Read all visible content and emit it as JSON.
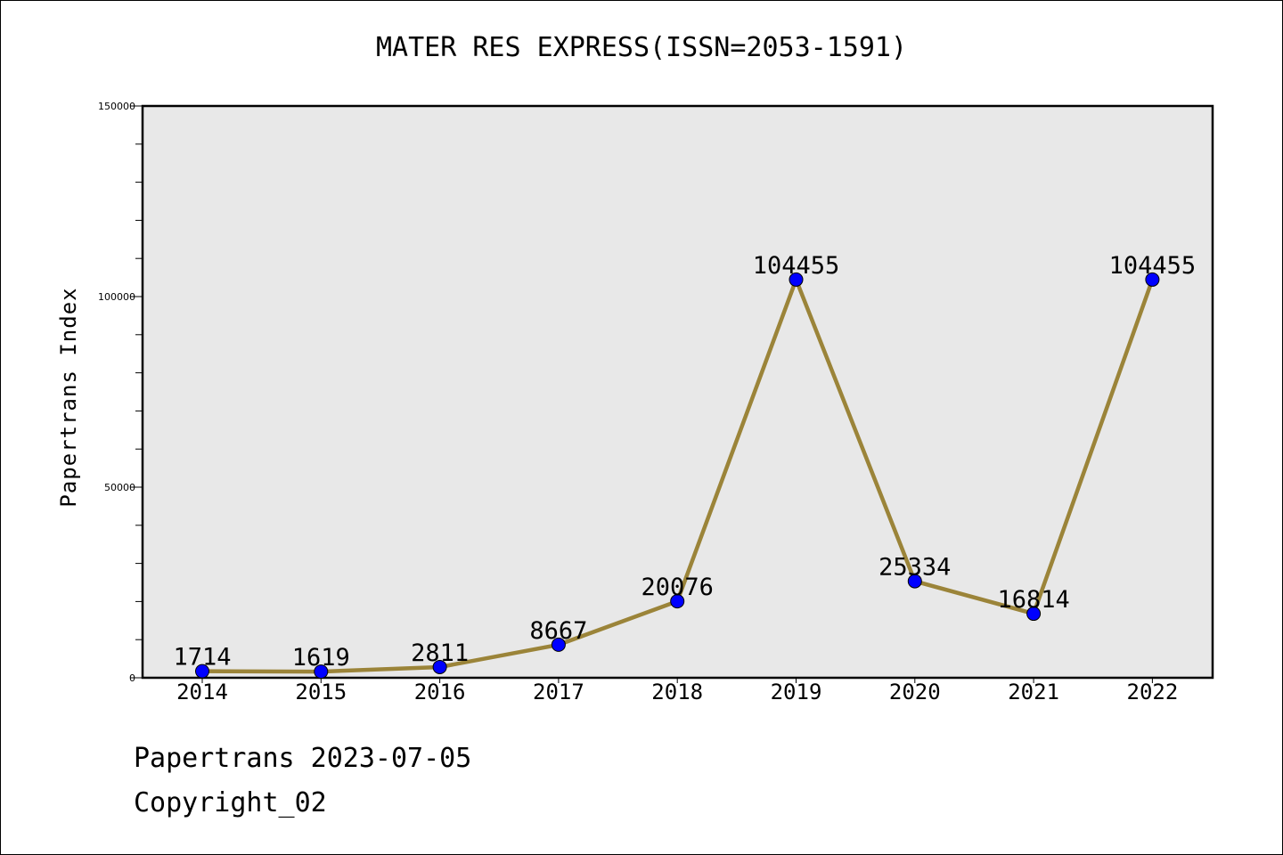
{
  "chart_data": {
    "type": "line",
    "title": "MATER RES EXPRESS(ISSN=2053-1591)",
    "xlabel": "",
    "ylabel": "Papertrans Index",
    "categories": [
      "2014",
      "2015",
      "2016",
      "2017",
      "2018",
      "2019",
      "2020",
      "2021",
      "2022"
    ],
    "values": [
      1714,
      1619,
      2811,
      8667,
      20076,
      104455,
      25334,
      16814,
      104455
    ],
    "data_labels": [
      "1714",
      "1619",
      "2811",
      "8667",
      "20076",
      "104455",
      "25334",
      "16814",
      "104455"
    ],
    "ylim": [
      0,
      150000
    ],
    "yticks": [
      0,
      50000,
      100000,
      150000
    ],
    "ytick_labels": [
      "0",
      "50000",
      "100000",
      "150000"
    ],
    "y_minor_step": 10000,
    "grid": false,
    "colors": {
      "plot_background": "#e8e8e8",
      "line": "#9b8439",
      "marker": "#0000ff"
    }
  },
  "footer": {
    "date_text": "Papertrans 2023-07-05",
    "copyright_text": "Copyright_02"
  }
}
